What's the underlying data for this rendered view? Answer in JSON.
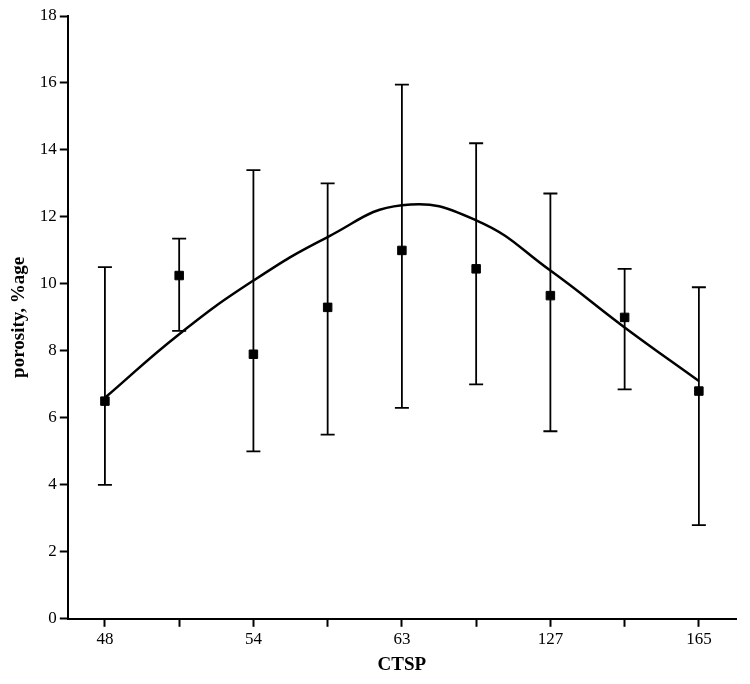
{
  "chart_data": {
    "type": "scatter",
    "x_label": "CTSP",
    "y_label": "porosity, %age",
    "categories": [
      "48",
      null,
      "54",
      null,
      "63",
      null,
      "127",
      null,
      "165"
    ],
    "series": [
      {
        "type": "scatter",
        "marker": "square",
        "color": "#000000",
        "values": [
          6.5,
          10.25,
          7.9,
          9.3,
          11.0,
          10.45,
          9.65,
          9.0,
          6.8
        ],
        "error_low": [
          4.0,
          8.6,
          5.0,
          5.5,
          6.3,
          7.0,
          5.6,
          6.85,
          2.8
        ],
        "error_high": [
          10.5,
          11.35,
          13.4,
          13.0,
          15.95,
          14.2,
          12.7,
          10.45,
          9.9
        ]
      },
      {
        "type": "line",
        "line_style": "solid",
        "color": "#000000",
        "values": [
          6.6,
          8.5,
          10.1,
          11.4,
          12.35,
          11.9,
          10.4,
          8.7,
          7.1
        ]
      }
    ],
    "ylim": [
      0,
      18
    ],
    "yticks": [
      0,
      2,
      4,
      6,
      8,
      10,
      12,
      14,
      16,
      18
    ],
    "grid": false
  }
}
